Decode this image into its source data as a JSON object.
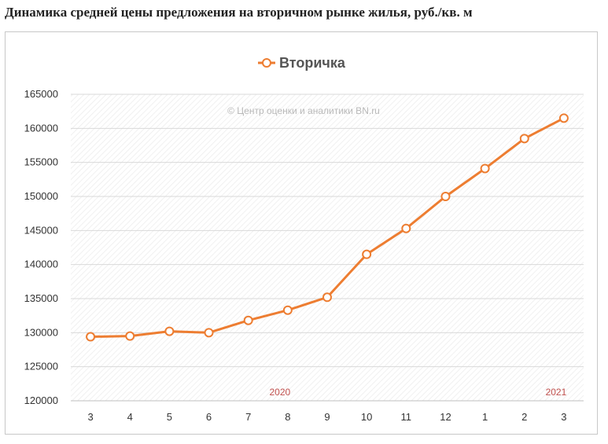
{
  "page": {
    "title": "Динамика средней цены предложения на вторичном рынке жилья, руб./кв. м"
  },
  "chart_data": {
    "type": "line",
    "categories": [
      "3",
      "4",
      "5",
      "6",
      "7",
      "8",
      "9",
      "10",
      "11",
      "12",
      "1",
      "2",
      "3"
    ],
    "series": [
      {
        "name": "Вторичка",
        "values": [
          129400,
          129500,
          130200,
          130000,
          131800,
          133300,
          135200,
          141500,
          145300,
          150000,
          154100,
          158500,
          161500
        ],
        "color": "#ed7d31"
      }
    ],
    "ylim": [
      120000,
      165000
    ],
    "yticks": [
      120000,
      125000,
      130000,
      135000,
      140000,
      145000,
      150000,
      155000,
      160000,
      165000
    ],
    "year_labels": [
      {
        "text": "2020",
        "category_index": 5
      },
      {
        "text": "2021",
        "category_index": 12
      }
    ],
    "watermark": "© Центр оценки и аналитики BN.ru",
    "grid": true,
    "legend_position": "top",
    "plot_background": "hatched"
  }
}
